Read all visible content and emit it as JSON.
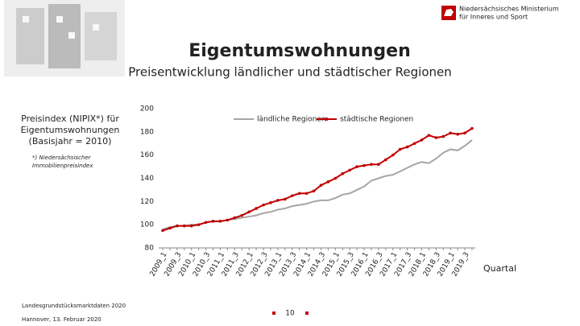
{
  "header": {
    "ministry": [
      "Niedersächsisches Ministerium",
      "für Inneres und Sport"
    ]
  },
  "chart_data": {
    "type": "line",
    "title": "Eigentumswohnungen",
    "subtitle": "Preisentwicklung ländlicher und städtischer Regionen",
    "ylabel": [
      "Preisindex (NIPIX*) für",
      "Eigentumswohnungen",
      "(Basisjahr = 2010)"
    ],
    "footnote": [
      "*) Niedersächsischer",
      "Immobilienpreisindex"
    ],
    "xlabel": "Quartal",
    "categories": [
      "2009_1",
      null,
      "2009_3",
      null,
      "2010_1",
      null,
      "2010_3",
      null,
      "2011_1",
      null,
      "2011_3",
      null,
      "2012_1",
      null,
      "2012_3",
      null,
      "2013_1",
      null,
      "2013_3",
      null,
      "2014_1",
      null,
      "2014_3",
      null,
      "2015_1",
      null,
      "2015_3",
      null,
      "2016_1",
      null,
      "2016_3",
      null,
      "2017_1",
      null,
      "2017_3",
      null,
      "2018_1",
      null,
      "2018_3",
      null,
      "2019_1",
      null,
      "2019_3",
      null
    ],
    "series": [
      {
        "name": "ländliche Regionen",
        "color": "#a6a6a6",
        "values": [
          96,
          98,
          99,
          99,
          100,
          100,
          102,
          103,
          103,
          104,
          105,
          106,
          107,
          108,
          110,
          111,
          113,
          114,
          116,
          117,
          118,
          120,
          121,
          121,
          123,
          126,
          127,
          130,
          133,
          138,
          140,
          142,
          143,
          146,
          149,
          152,
          154,
          153,
          157,
          162,
          165,
          164,
          168,
          173
        ]
      },
      {
        "name": "städtische Regionen",
        "color": "#c00000",
        "values": [
          95,
          97,
          99,
          99,
          99,
          100,
          102,
          103,
          103,
          104,
          106,
          108,
          111,
          114,
          117,
          119,
          121,
          122,
          125,
          127,
          127,
          129,
          134,
          137,
          140,
          144,
          147,
          150,
          151,
          152,
          152,
          156,
          160,
          165,
          167,
          170,
          173,
          177,
          175,
          176,
          179,
          178,
          179,
          183
        ]
      }
    ],
    "ylim": [
      80,
      200
    ],
    "yticks": [
      80,
      100,
      120,
      140,
      160,
      180,
      200
    ],
    "legend": "top"
  },
  "footer": {
    "left": [
      "Landesgrundstücksmarktdaten 2020",
      "Hannover, 13. Februar 2020"
    ],
    "page": "10"
  }
}
